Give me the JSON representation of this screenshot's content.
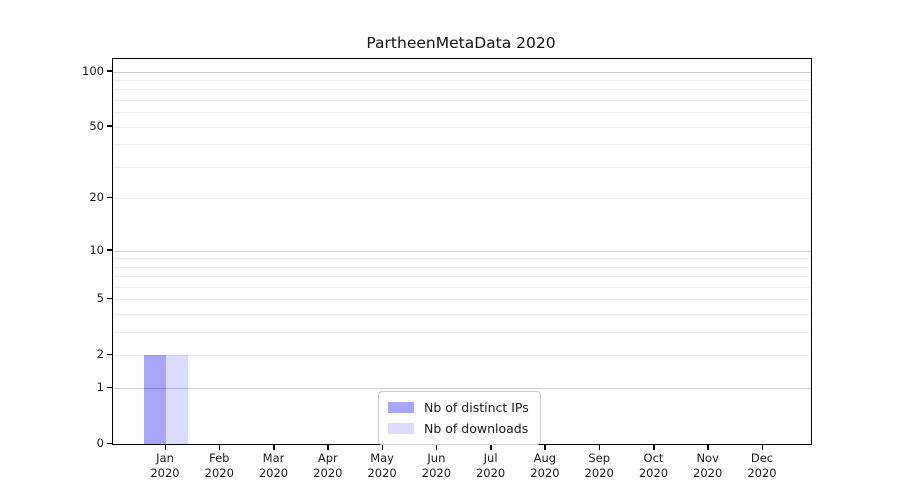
{
  "figure": {
    "title": "PartheenMetaData 2020"
  },
  "chart_data": {
    "type": "bar",
    "title": "PartheenMetaData 2020",
    "categories": [
      "Jan",
      "Feb",
      "Mar",
      "Apr",
      "May",
      "Jun",
      "Jul",
      "Aug",
      "Sep",
      "Oct",
      "Nov",
      "Dec"
    ],
    "category_year": "2020",
    "series": [
      {
        "name": "Nb of distinct IPs",
        "color": "rgba(0,0,238,0.35)",
        "values": [
          2,
          0,
          0,
          0,
          0,
          0,
          0,
          0,
          0,
          0,
          0,
          0
        ]
      },
      {
        "name": "Nb of downloads",
        "color": "rgba(0,0,238,0.14)",
        "values": [
          2,
          0,
          0,
          0,
          0,
          0,
          0,
          0,
          0,
          0,
          0,
          0
        ]
      }
    ],
    "xlabel": "",
    "ylabel": "",
    "yscale": "log1p",
    "ylim": [
      0,
      117
    ],
    "yticks": [
      0,
      1,
      2,
      5,
      10,
      20,
      50,
      100
    ],
    "grid": {
      "orientation": "horizontal",
      "major_values": [
        1,
        10,
        100
      ],
      "minor_values": [
        2,
        3,
        4,
        5,
        6,
        7,
        8,
        9,
        20,
        30,
        40,
        50,
        60,
        70,
        80,
        90
      ],
      "major_color": "#cccccc",
      "minor_color": "#ebebeb"
    },
    "legend": {
      "position": "lower center inside",
      "entries": [
        "Nb of distinct IPs",
        "Nb of downloads"
      ]
    }
  }
}
